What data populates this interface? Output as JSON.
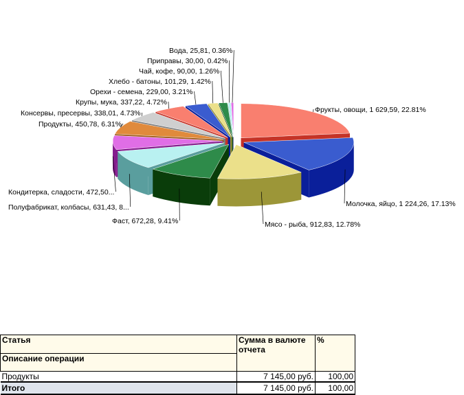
{
  "chart_data": {
    "type": "pie",
    "slices": [
      {
        "label": "Фрукты, овощи, 1 629,59, 22.81%",
        "value": 1629.59,
        "percent": 22.81,
        "color": "#f97f6f",
        "side": "#c53327"
      },
      {
        "label": "Молочка, яйцо, 1 224,26, 17.13%",
        "value": 1224.26,
        "percent": 17.13,
        "color": "#3a5ccf",
        "side": "#0a1f9a"
      },
      {
        "label": "Мясо - рыба, 912,83, 12.78%",
        "value": 912.83,
        "percent": 12.78,
        "color": "#ebe08a",
        "side": "#9c9638"
      },
      {
        "label": "Фаст, 672,28, 9.41%",
        "value": 672.28,
        "percent": 9.41,
        "color": "#2e8b4a",
        "side": "#0a3d0a"
      },
      {
        "label": "Полуфабрикат, колбасы, 631,43, 8...",
        "value": 631.43,
        "percent": 8.84,
        "color": "#b9f1f1",
        "side": "#5a9e9e"
      },
      {
        "label": "Кондитерка, сладости, 472,50...",
        "value": 472.5,
        "percent": 6.61,
        "color": "#e06ee6",
        "side": "#851d8e"
      },
      {
        "label": "Продукты, 450,78, 6.31%",
        "value": 450.78,
        "percent": 6.31,
        "color": "#e08a3c",
        "side": "#9a5510"
      },
      {
        "label": "Консервы, пресервы, 338,01, 4.73%",
        "value": 338.01,
        "percent": 4.73,
        "color": "#cfcfcf",
        "side": "#7a7a7a"
      },
      {
        "label": "Крупы, мука, 337,22, 4.72%",
        "value": 337.22,
        "percent": 4.72,
        "color": "#f97f6f",
        "side": "#c53327"
      },
      {
        "label": "Орехи - семена, 229,00, 3.21%",
        "value": 229.0,
        "percent": 3.21,
        "color": "#3a5ccf",
        "side": "#0a1f9a"
      },
      {
        "label": "Хлебо - батоны, 101,29, 1.42%",
        "value": 101.29,
        "percent": 1.42,
        "color": "#ebe08a",
        "side": "#9c9638"
      },
      {
        "label": "Чай, кофе, 90,00, 1.26%",
        "value": 90.0,
        "percent": 1.26,
        "color": "#2e8b4a",
        "side": "#0a3d0a"
      },
      {
        "label": "Приправы, 30,00, 0.42%",
        "value": 30.0,
        "percent": 0.42,
        "color": "#b9f1f1",
        "side": "#5a9e9e"
      },
      {
        "label": "Вода, 25,81, 0.36%",
        "value": 25.81,
        "percent": 0.36,
        "color": "#e06ee6",
        "side": "#851d8e"
      }
    ]
  },
  "table": {
    "headers": {
      "col1_top": "Статья",
      "col1_bottom": "Описание операции",
      "col2": "Сумма в валюте отчета",
      "col3": "%"
    },
    "rows": [
      {
        "name": "Продукты",
        "sum": "7 145,00 руб.",
        "pct": "100,00"
      }
    ],
    "total": {
      "name": "Итого",
      "sum": "7 145,00 руб.",
      "pct": "100,00"
    }
  }
}
